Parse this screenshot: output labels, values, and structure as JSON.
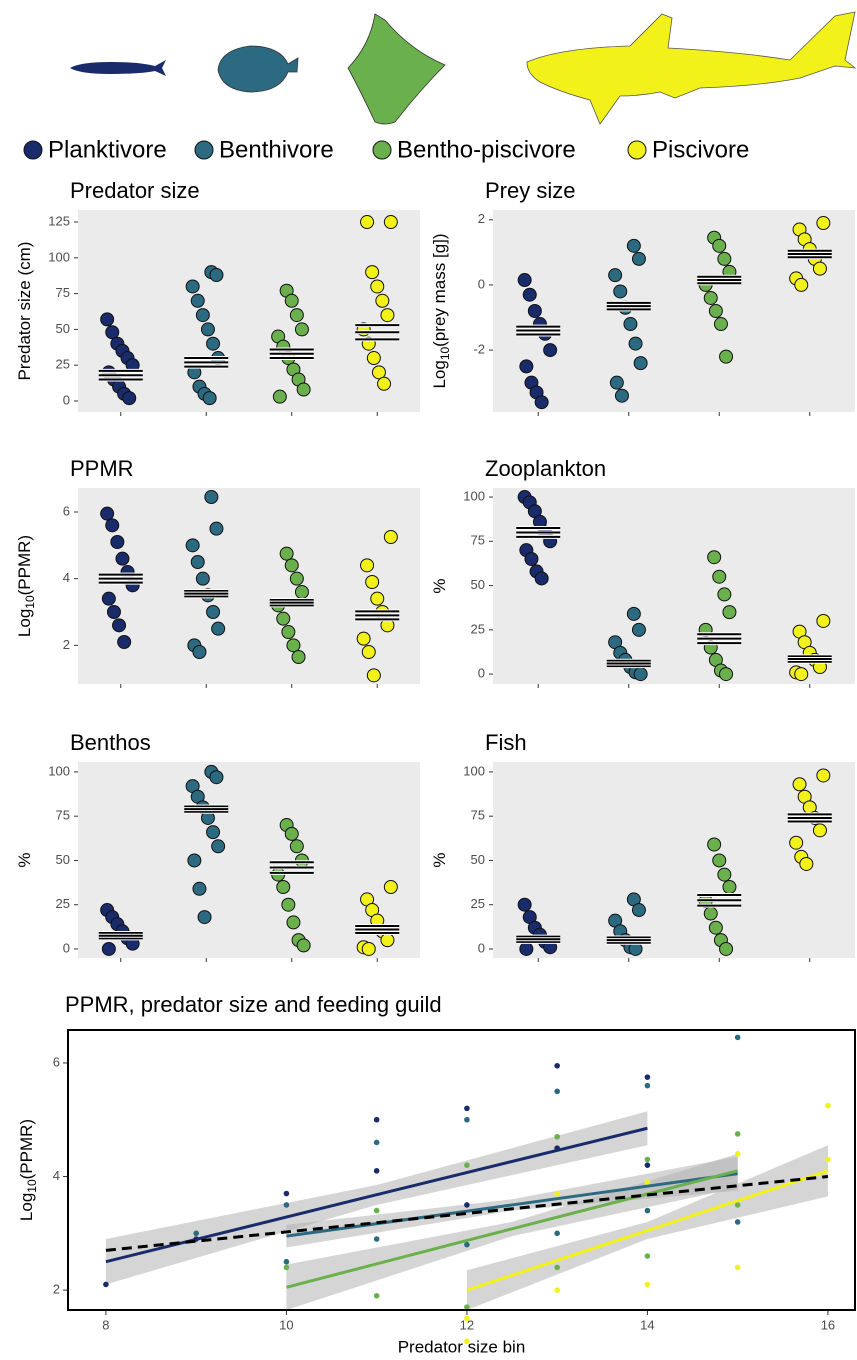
{
  "legend": [
    {
      "name": "Planktivore",
      "color": "#1a2b6b"
    },
    {
      "name": "Benthivore",
      "color": "#2b6a80"
    },
    {
      "name": "Bentho-piscivore",
      "color": "#6ab04c"
    },
    {
      "name": "Piscivore",
      "color": "#f2f21a"
    }
  ],
  "chart_data": [
    {
      "type": "strip",
      "title": "Predator size",
      "ylabel": {
        "text": "Predator size (cm)"
      },
      "ylim": [
        -7.7,
        133.4
      ],
      "yticks": [
        0,
        25,
        50,
        75,
        100,
        125
      ],
      "groups": [
        {
          "values": [
            57,
            48,
            40,
            35,
            30,
            25,
            20,
            15,
            10,
            5,
            2
          ],
          "mean": 18,
          "se": 3
        },
        {
          "values": [
            90,
            88,
            80,
            70,
            60,
            50,
            40,
            30,
            20,
            10,
            5,
            2
          ],
          "mean": 27,
          "se": 3
        },
        {
          "values": [
            77,
            70,
            60,
            50,
            45,
            38,
            30,
            22,
            15,
            8,
            3
          ],
          "mean": 33,
          "se": 3
        },
        {
          "values": [
            125,
            125,
            90,
            80,
            70,
            60,
            50,
            40,
            30,
            20,
            12
          ],
          "mean": 48,
          "se": 5
        }
      ]
    },
    {
      "type": "strip",
      "title": "Prey size",
      "ylabel": {
        "text": "Log",
        "sub": "10",
        "rest": "(prey mass [g])"
      },
      "ylim": [
        -3.9,
        2.3
      ],
      "yticks": [
        -2,
        0,
        2
      ],
      "groups": [
        {
          "values": [
            0.15,
            -0.3,
            -0.8,
            -1.2,
            -1.5,
            -2,
            -2.5,
            -3,
            -3.3,
            -3.6
          ],
          "mean": -1.4,
          "se": 0.12
        },
        {
          "values": [
            1.2,
            0.8,
            0.3,
            -0.2,
            -0.7,
            -1.2,
            -1.8,
            -2.4,
            -3.0,
            -3.4
          ],
          "mean": -0.65,
          "se": 0.1
        },
        {
          "values": [
            1.45,
            1.2,
            0.8,
            0.4,
            0,
            -0.4,
            -0.8,
            -1.2,
            -2.2
          ],
          "mean": 0.15,
          "se": 0.1
        },
        {
          "values": [
            1.9,
            1.7,
            1.4,
            1.1,
            0.8,
            0.5,
            0.2,
            0
          ],
          "mean": 0.95,
          "se": 0.1
        }
      ]
    },
    {
      "type": "strip",
      "title": "PPMR",
      "ylabel": {
        "text": "Log",
        "sub": "10",
        "rest": "(PPMR)"
      },
      "ylim": [
        0.84,
        6.72
      ],
      "yticks": [
        2,
        4,
        6
      ],
      "groups": [
        {
          "values": [
            5.95,
            5.6,
            5.1,
            4.6,
            4.2,
            3.8,
            3.4,
            3.0,
            2.6,
            2.1
          ],
          "mean": 4.0,
          "se": 0.12
        },
        {
          "values": [
            6.45,
            5.5,
            5.0,
            4.5,
            4.0,
            3.5,
            3.0,
            2.5,
            2.0,
            1.8
          ],
          "mean": 3.55,
          "se": 0.08
        },
        {
          "values": [
            4.75,
            4.4,
            4.0,
            3.6,
            3.2,
            2.8,
            2.4,
            2.0,
            1.65
          ],
          "mean": 3.28,
          "se": 0.08
        },
        {
          "values": [
            5.25,
            4.4,
            3.9,
            3.4,
            3.0,
            2.6,
            2.2,
            1.8,
            1.1
          ],
          "mean": 2.9,
          "se": 0.12
        }
      ]
    },
    {
      "type": "strip",
      "title": "Zooplankton",
      "ylabel": {
        "text": "%"
      },
      "ylim": [
        -5.6,
        105.1
      ],
      "yticks": [
        0,
        25,
        50,
        75,
        100
      ],
      "groups": [
        {
          "values": [
            100,
            97,
            92,
            86,
            80,
            75,
            70,
            65,
            58,
            54
          ],
          "mean": 80,
          "se": 2.5
        },
        {
          "values": [
            34,
            25,
            18,
            12,
            8,
            4,
            1,
            0
          ],
          "mean": 6,
          "se": 1.5
        },
        {
          "values": [
            66,
            55,
            45,
            35,
            25,
            15,
            8,
            2,
            0
          ],
          "mean": 20,
          "se": 2.5
        },
        {
          "values": [
            30,
            24,
            18,
            12,
            8,
            4,
            1,
            0
          ],
          "mean": 8.5,
          "se": 1.5
        }
      ]
    },
    {
      "type": "strip",
      "title": "Benthos",
      "ylabel": {
        "text": "%"
      },
      "ylim": [
        -5.1,
        105.6
      ],
      "yticks": [
        0,
        25,
        50,
        75,
        100
      ],
      "groups": [
        {
          "values": [
            22,
            18,
            14,
            10,
            6,
            3,
            0
          ],
          "mean": 7.5,
          "se": 1.5
        },
        {
          "values": [
            100,
            97,
            92,
            86,
            80,
            74,
            66,
            58,
            50,
            34,
            18
          ],
          "mean": 79,
          "se": 1.5
        },
        {
          "values": [
            70,
            65,
            58,
            50,
            42,
            35,
            25,
            15,
            5,
            2
          ],
          "mean": 46,
          "se": 3
        },
        {
          "values": [
            35,
            28,
            22,
            16,
            10,
            5,
            1,
            0
          ],
          "mean": 11,
          "se": 2
        }
      ]
    },
    {
      "type": "strip",
      "title": "Fish",
      "ylabel": {
        "text": "%"
      },
      "ylim": [
        -5.1,
        105.6
      ],
      "yticks": [
        0,
        25,
        50,
        75,
        100
      ],
      "groups": [
        {
          "values": [
            25,
            18,
            12,
            8,
            4,
            1,
            0
          ],
          "mean": 5.5,
          "se": 1.5
        },
        {
          "values": [
            28,
            22,
            16,
            10,
            5,
            1,
            0
          ],
          "mean": 5,
          "se": 1.5
        },
        {
          "values": [
            59,
            50,
            42,
            35,
            27,
            20,
            12,
            5,
            0
          ],
          "mean": 27.5,
          "se": 3
        },
        {
          "values": [
            98,
            93,
            86,
            80,
            74,
            67,
            60,
            52,
            48
          ],
          "mean": 74,
          "se": 2
        }
      ]
    },
    {
      "type": "regression",
      "title": "PPMR, predator size and feeding guild",
      "xlabel": "Predator size bin",
      "ylabel": {
        "text": "Log",
        "sub": "10",
        "rest": "(PPMR)"
      },
      "xlim": [
        7.58,
        16.3
      ],
      "ylim": [
        1.65,
        6.58
      ],
      "xticks": [
        8,
        10,
        12,
        14,
        16
      ],
      "yticks": [
        2,
        4,
        6
      ],
      "band_color": "#b3b3b3",
      "overall": {
        "x": [
          8,
          16
        ],
        "values": [
          2.7,
          4.0
        ],
        "color": "#000000"
      },
      "series": [
        {
          "points": {
            "x": [
              8,
              9,
              10,
              11,
              11,
              12,
              12,
              13,
              13,
              14,
              14
            ],
            "values": [
              2.1,
              2.9,
              3.7,
              5.0,
              4.1,
              5.2,
              3.5,
              5.95,
              4.5,
              5.75,
              4.2
            ]
          },
          "line": {
            "x": [
              8,
              11,
              14
            ],
            "values": [
              2.5,
              3.68,
              4.85
            ],
            "lower": [
              2.1,
              3.5,
              4.55
            ],
            "upper": [
              2.9,
              3.85,
              5.15
            ]
          }
        },
        {
          "points": {
            "x": [
              9,
              10,
              10,
              11,
              11,
              12,
              12,
              13,
              13,
              14,
              14,
              15,
              15
            ],
            "values": [
              3.0,
              3.5,
              2.5,
              4.6,
              2.9,
              5.0,
              2.8,
              5.5,
              3.0,
              5.6,
              3.4,
              6.45,
              3.2
            ]
          },
          "line": {
            "x": [
              10,
              12.5,
              15
            ],
            "values": [
              2.95,
              3.5,
              4.05
            ],
            "lower": [
              2.75,
              3.4,
              3.75
            ],
            "upper": [
              3.15,
              3.6,
              4.35
            ]
          }
        },
        {
          "points": {
            "x": [
              10,
              11,
              11,
              12,
              12,
              13,
              13,
              14,
              14,
              15,
              15
            ],
            "values": [
              2.4,
              3.4,
              1.9,
              4.2,
              1.7,
              4.7,
              2.4,
              4.3,
              2.6,
              4.75,
              3.5
            ]
          },
          "line": {
            "x": [
              10,
              12.5,
              15
            ],
            "values": [
              2.05,
              3.08,
              4.1
            ],
            "lower": [
              1.65,
              2.95,
              3.8
            ],
            "upper": [
              2.45,
              3.2,
              4.4
            ]
          }
        },
        {
          "points": {
            "x": [
              12,
              12,
              13,
              13,
              14,
              14,
              15,
              15,
              16,
              16
            ],
            "values": [
              1.5,
              1.1,
              3.7,
              2.0,
              3.9,
              2.1,
              4.4,
              2.4,
              5.25,
              4.3
            ]
          },
          "line": {
            "x": [
              12,
              14,
              16
            ],
            "values": [
              2.0,
              3.05,
              4.1
            ],
            "lower": [
              1.65,
              2.9,
              3.65
            ],
            "upper": [
              2.35,
              3.2,
              4.55
            ]
          }
        }
      ]
    }
  ]
}
